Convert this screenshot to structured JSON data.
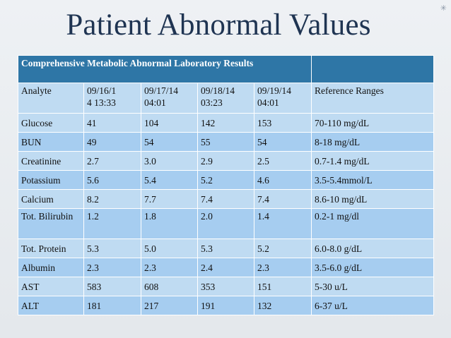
{
  "slide": {
    "title": "Patient Abnormal Values",
    "corner_mark": "✳"
  },
  "table": {
    "title": "Comprehensive Metabolic Abnormal Laboratory Results",
    "headers": [
      "Analyte",
      "09/16/1\n4 13:33",
      "09/17/14\n04:01",
      "09/18/14\n03:23",
      "09/19/14\n04:01",
      "Reference Ranges"
    ],
    "rows": [
      [
        "Glucose",
        "41",
        "104",
        "142",
        "153",
        "70-110 mg/dL"
      ],
      [
        "BUN",
        "49",
        "54",
        "55",
        "54",
        "8-18 mg/dL"
      ],
      [
        "Creatinine",
        "2.7",
        "3.0",
        "2.9",
        "2.5",
        "0.7-1.4 mg/dL"
      ],
      [
        "Potassium",
        "5.6",
        "5.4",
        "5.2",
        "4.6",
        "3.5-5.4mmol/L"
      ],
      [
        "Calcium",
        "8.2",
        "7.7",
        "7.4",
        "7.4",
        "8.6-10 mg/dL"
      ],
      [
        "Tot. Bilirubin",
        "1.2",
        "1.8",
        "2.0",
        "1.4",
        "0.2-1 mg/dl"
      ],
      [
        "Tot. Protein",
        "5.3",
        "5.0",
        "5.3",
        "5.2",
        "6.0-8.0 g/dL"
      ],
      [
        "Albumin",
        "2.3",
        "2.3",
        "2.4",
        "2.3",
        "3.5-6.0 g/dL"
      ],
      [
        "AST",
        "583",
        "608",
        "353",
        "151",
        "5-30 u/L"
      ],
      [
        "ALT",
        "181",
        "217",
        "191",
        "132",
        "6-37 u/L"
      ]
    ]
  },
  "colors": {
    "title_text": "#1f3452",
    "header_band": "#2e76a6",
    "row_light": "#bfdbf2",
    "row_dark": "#a6cdf0"
  }
}
